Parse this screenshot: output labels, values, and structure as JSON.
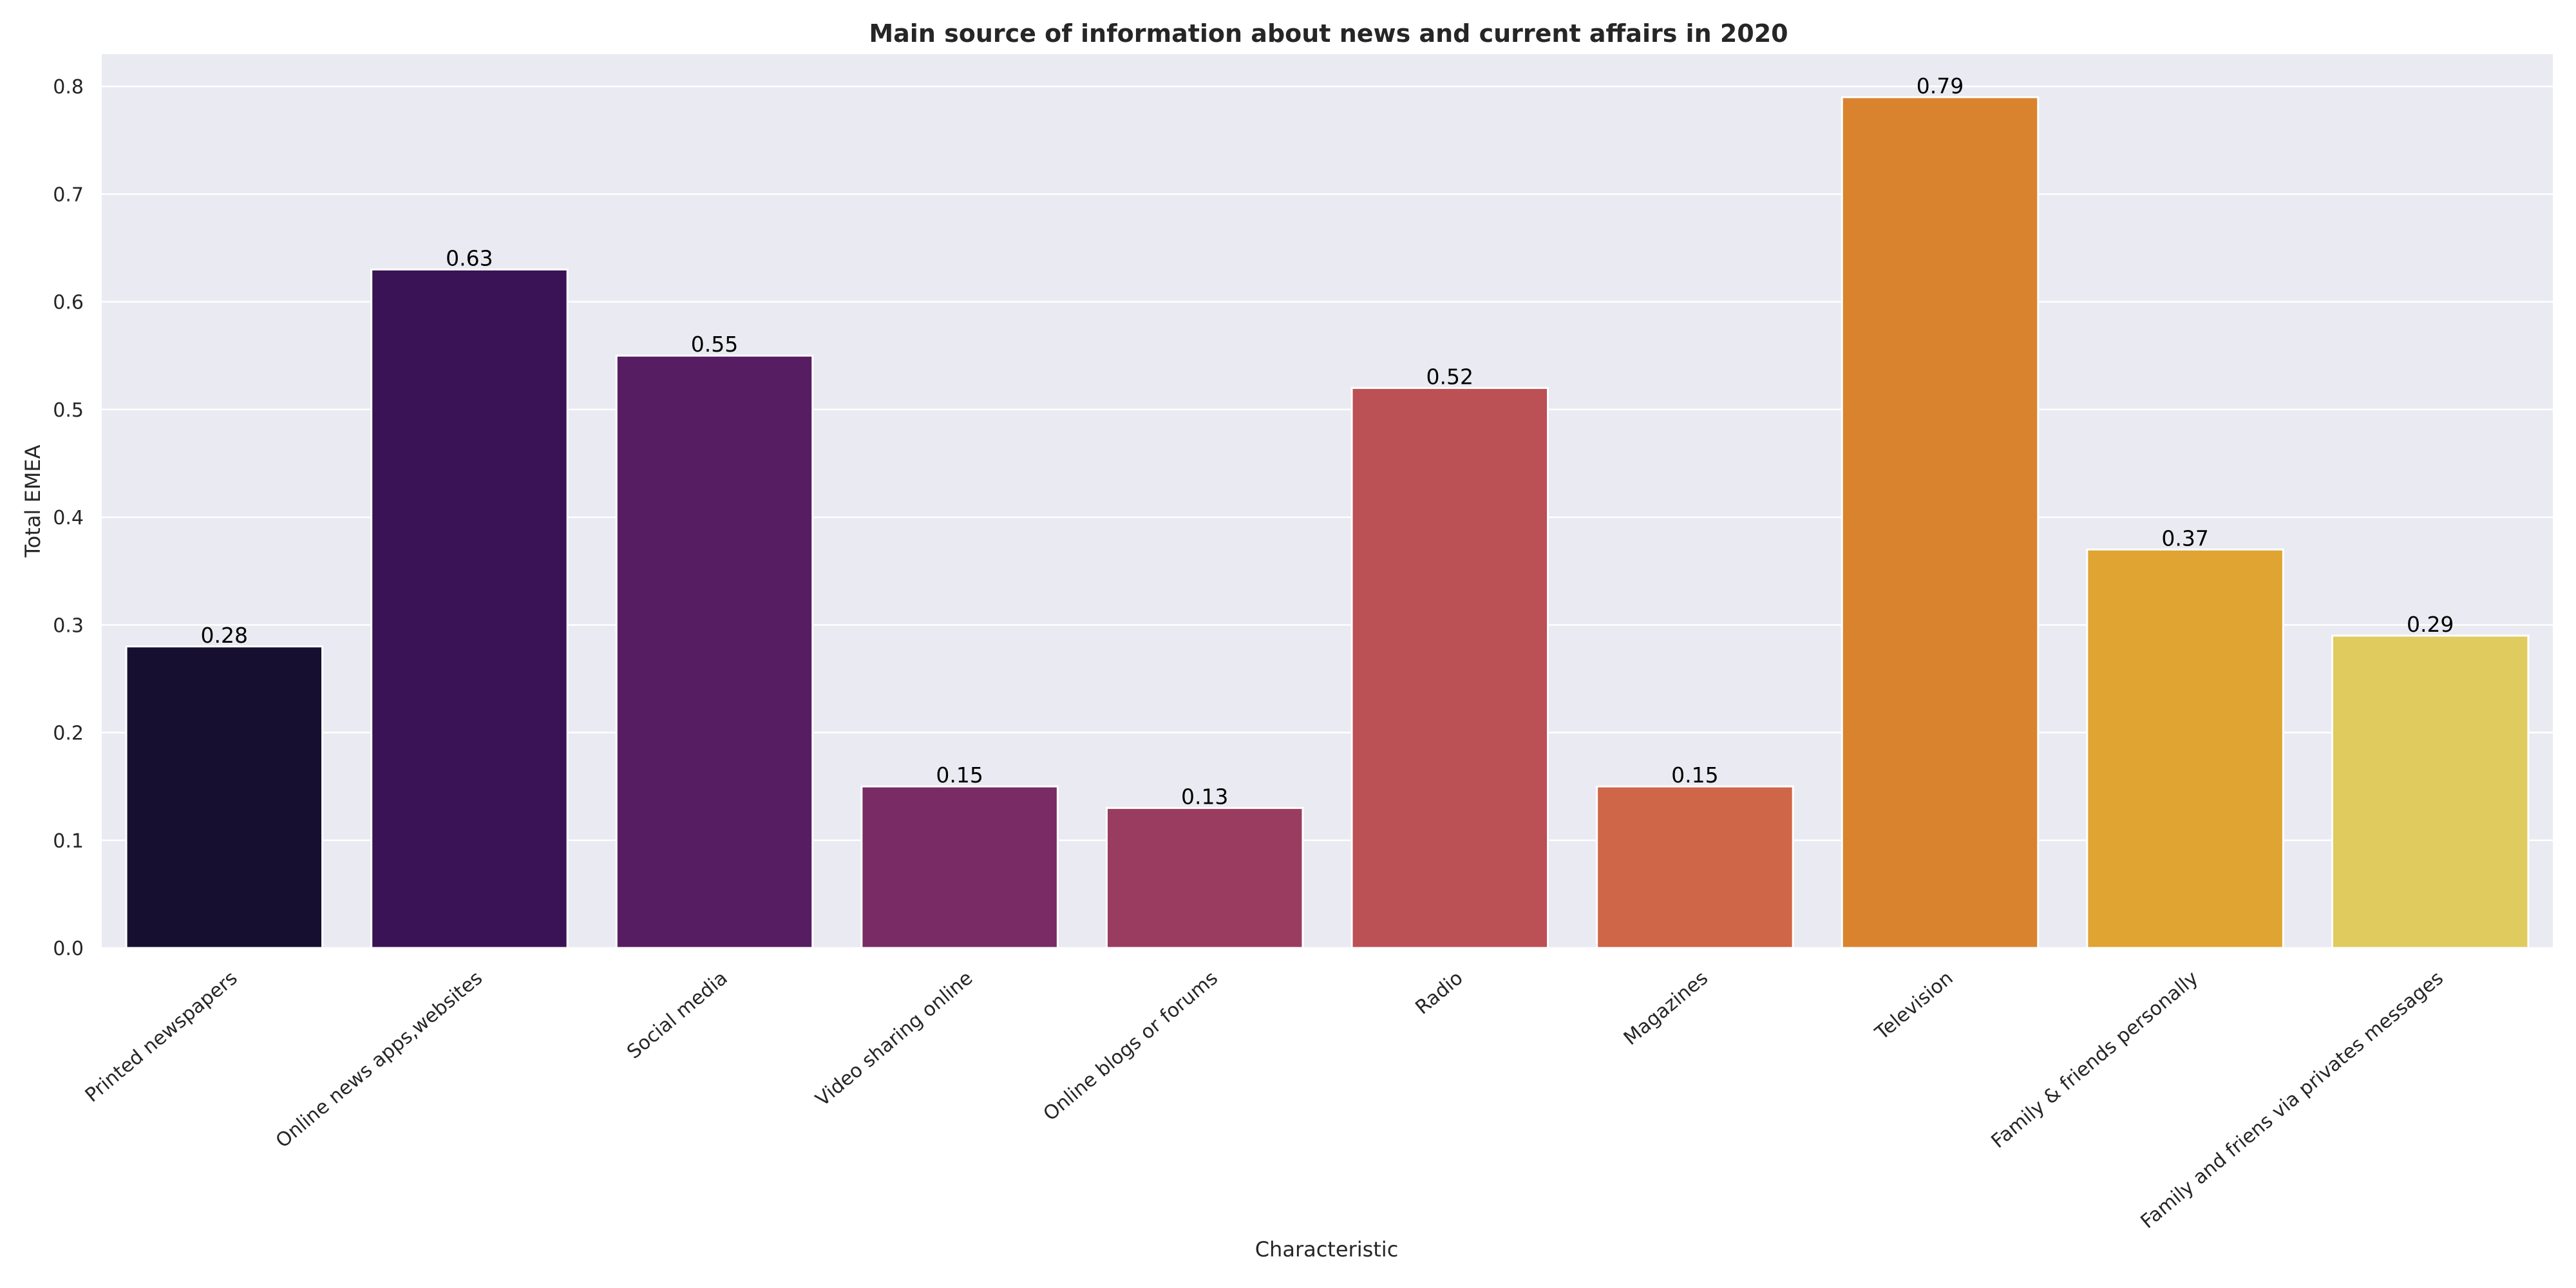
{
  "chart_data": {
    "type": "bar",
    "title": "Main source of information about news and current affairs in 2020",
    "xlabel": "Characteristic",
    "ylabel": "Total EMEA",
    "ylim": [
      0,
      0.83
    ],
    "yticks": [
      0.0,
      0.1,
      0.2,
      0.3,
      0.4,
      0.5,
      0.6,
      0.7,
      0.8
    ],
    "ytick_labels": [
      "0.0",
      "0.1",
      "0.2",
      "0.3",
      "0.4",
      "0.5",
      "0.6",
      "0.7",
      "0.8"
    ],
    "grid": true,
    "categories": [
      "Printed newspapers",
      "Online news apps,websites",
      "Social media",
      "Video sharing online",
      "Online blogs or forums",
      "Radio",
      "Magazines",
      "Television",
      "Family & friends personally",
      "Family and friens via privates messages"
    ],
    "values": [
      0.28,
      0.63,
      0.55,
      0.15,
      0.13,
      0.52,
      0.15,
      0.79,
      0.37,
      0.29
    ],
    "value_labels": [
      "0.28",
      "0.63",
      "0.55",
      "0.15",
      "0.13",
      "0.52",
      "0.15",
      "0.79",
      "0.37",
      "0.29"
    ],
    "colors": [
      "#170f30",
      "#3a1356",
      "#571d62",
      "#782b64",
      "#993c60",
      "#bb5055",
      "#cf6648",
      "#d9832e",
      "#dfa431",
      "#e0cb5f"
    ]
  },
  "theme": {
    "plot_background": "#eaeaf2",
    "grid_color": "#ffffff"
  }
}
